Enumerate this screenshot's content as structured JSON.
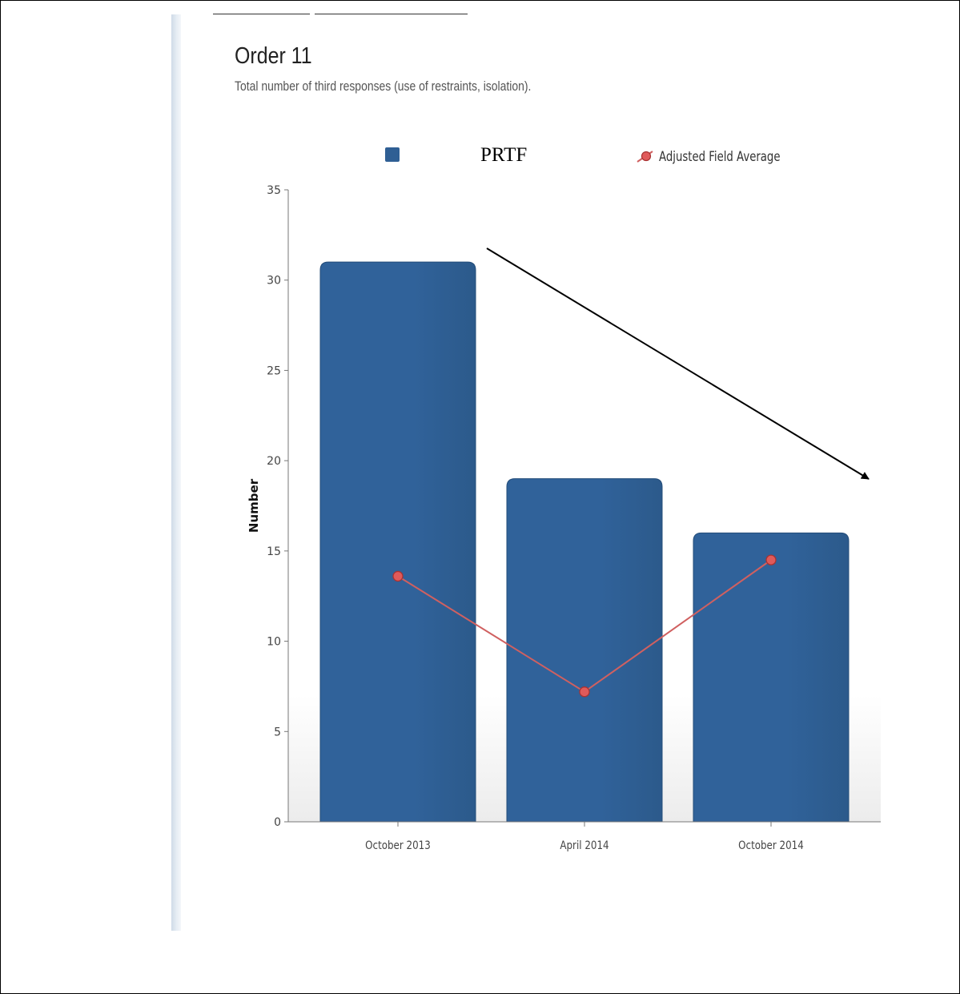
{
  "header": {
    "title": "Order 11",
    "subtitle": "Total number of third responses (use of restraints, isolation)."
  },
  "legend": {
    "prtf_label": "PRTF",
    "avg_label": "Adjusted Field Average"
  },
  "colors": {
    "bar": "#30629a",
    "bar_dark": "#2c5a8b",
    "line": "#d06060",
    "marker_fill": "#e05a5a",
    "marker_stroke": "#a83232",
    "axis": "#777777",
    "arrow": "#000000"
  },
  "chart_data": {
    "type": "bar",
    "title": "Order 11",
    "subtitle": "Total number of third responses (use of restraints, isolation).",
    "categories": [
      "October 2013",
      "April 2014",
      "October 2014"
    ],
    "series": [
      {
        "name": "PRTF",
        "type": "bar",
        "values": [
          31,
          19,
          16
        ]
      },
      {
        "name": "Adjusted Field Average",
        "type": "line",
        "values": [
          13.6,
          7.2,
          14.5
        ]
      }
    ],
    "ylabel": "Number",
    "xlabel": "",
    "ylim": [
      0,
      35
    ],
    "yticks": [
      0,
      5,
      10,
      15,
      20,
      25,
      30,
      35
    ],
    "grid": false,
    "legend_position": "top",
    "annotation": "downward trend arrow"
  }
}
